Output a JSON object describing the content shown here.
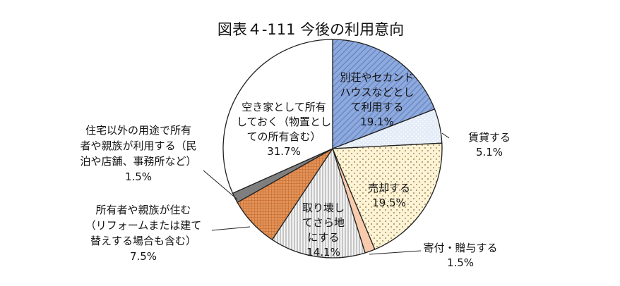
{
  "chart_data": {
    "type": "pie",
    "title": "図表４-111 今後の利用意向",
    "start_angle_deg": 0,
    "direction": "clockwise",
    "slices": [
      {
        "lines": [
          "別荘やセカンド",
          "ハウスなどとし",
          "て利用する"
        ],
        "value_label": "19.1%",
        "value": 19.1,
        "fill": "hatch-blue",
        "color": "#8ea9db"
      },
      {
        "lines": [
          "賃貸する"
        ],
        "value_label": "5.1%",
        "value": 5.1,
        "fill": "dots-lightblue",
        "color": "#dde7f5"
      },
      {
        "lines": [
          "売却する"
        ],
        "value_label": "19.5%",
        "value": 19.5,
        "fill": "dots-cream",
        "color": "#fdf2d0"
      },
      {
        "lines": [
          "寄付・贈与する"
        ],
        "value_label": "1.5%",
        "value": 1.5,
        "fill": "solid-peach",
        "color": "#f8cbad"
      },
      {
        "lines": [
          "取り壊し",
          "てさら地",
          "にする"
        ],
        "value_label": "14.1%",
        "value": 14.1,
        "fill": "vlines-gray",
        "color": "#e7e6e6"
      },
      {
        "lines": [
          "所有者や親族が住む",
          "（リフォームまたは建て",
          "替えする場合も含む）"
        ],
        "value_label": "7.5%",
        "value": 7.5,
        "fill": "grid-orange",
        "color": "#e2935a"
      },
      {
        "lines": [
          "住宅以外の用途で所有",
          "者や親族が利用する（民",
          "泊や店舗、事務所など）"
        ],
        "value_label": "1.5%",
        "value": 1.5,
        "fill": "solid-gray",
        "color": "#7f7f7f"
      },
      {
        "lines": [
          "空き家として所有",
          "しておく（物置とし",
          "ての所有含む）"
        ],
        "value_label": "31.7%",
        "value": 31.7,
        "fill": "solid-white",
        "color": "#ffffff"
      }
    ]
  }
}
